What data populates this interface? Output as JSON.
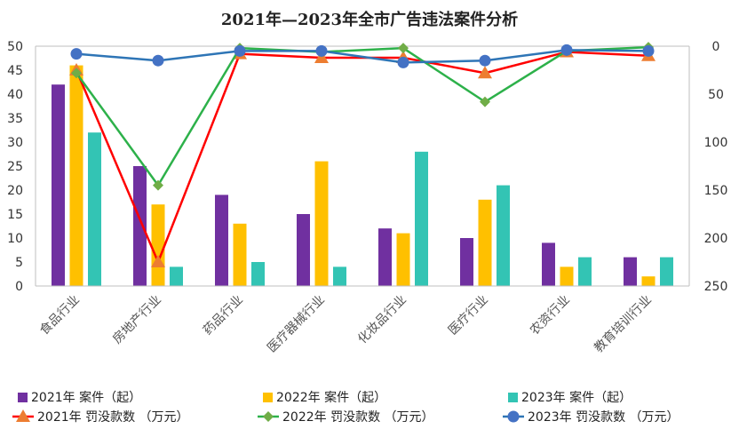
{
  "chart_data": {
    "type": "bar",
    "title": "2021年—2023年全市广告违法案件分析",
    "categories": [
      "食品行业",
      "房地产行业",
      "药品行业",
      "医疗器械行业",
      "化妆品行业",
      "医疗行业",
      "农资行业",
      "教育培训行业"
    ],
    "y_left": {
      "min": 0,
      "max": 50,
      "step": 5
    },
    "y_right": {
      "min": 0,
      "max": 250,
      "step": 50,
      "inverted": true
    },
    "bar_series": [
      {
        "name": "2021年 案件（起）",
        "color": "#7030A0",
        "values": [
          42,
          25,
          19,
          15,
          12,
          10,
          9,
          6
        ]
      },
      {
        "name": "2022年 案件（起）",
        "color": "#FFC000",
        "values": [
          46,
          17,
          13,
          26,
          11,
          18,
          4,
          2
        ]
      },
      {
        "name": "2023年 案件（起）",
        "color": "#33C4B4",
        "values": [
          32,
          4,
          5,
          4,
          28,
          21,
          6,
          6
        ]
      }
    ],
    "line_series": [
      {
        "name": "2021年 罚没款数 （万元）",
        "color": "#FF0000",
        "marker": "triangle",
        "marker_color": "#ED7D31",
        "values": [
          25,
          225,
          8,
          12,
          12,
          28,
          6,
          10
        ]
      },
      {
        "name": "2022年 罚没款数 （万元）",
        "color": "#2DB14A",
        "marker": "diamond",
        "marker_color": "#70AD47",
        "values": [
          28,
          145,
          2,
          6,
          2,
          58,
          5,
          1
        ]
      },
      {
        "name": "2023年 罚没款数 （万元）",
        "color": "#2E75B6",
        "marker": "circle",
        "marker_color": "#4472C4",
        "values": [
          8,
          15,
          5,
          5,
          17,
          15,
          4,
          5
        ]
      }
    ]
  }
}
